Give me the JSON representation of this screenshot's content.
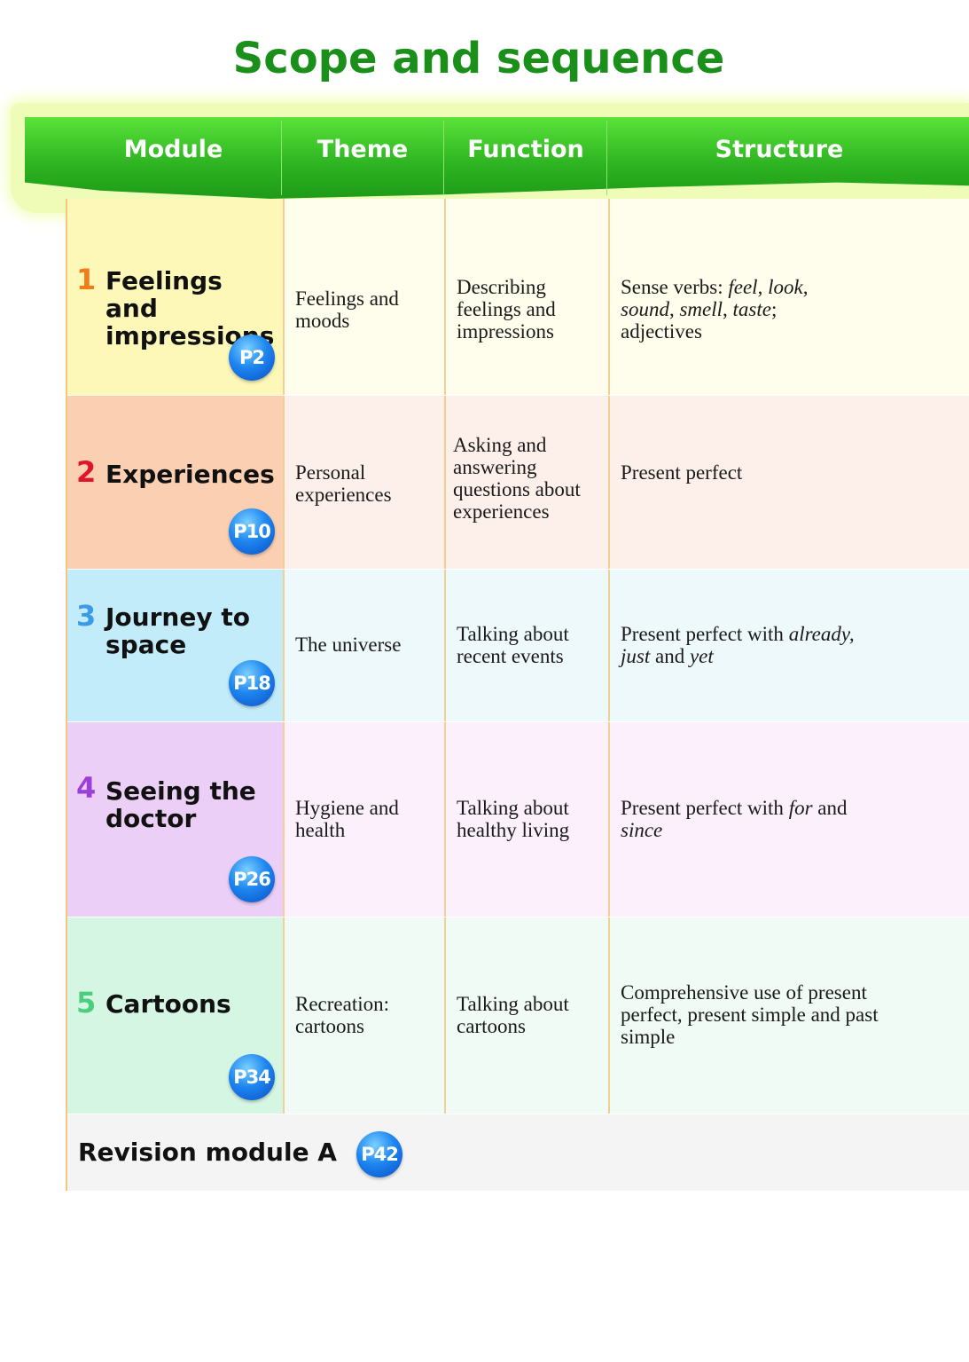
{
  "title": "Scope and sequence",
  "header": {
    "module": "Module",
    "theme": "Theme",
    "function": "Function",
    "structure": "Structure"
  },
  "modules": [
    {
      "number": "1",
      "title": "Feelings and impressions",
      "page": "P2",
      "theme": "Feelings and moods",
      "function": "Describing feelings and impressions",
      "structure": [
        {
          "t": "Sense verbs: ",
          "i": false
        },
        {
          "t": "feel",
          "i": true
        },
        {
          "t": ", ",
          "i": false
        },
        {
          "t": "look",
          "i": true
        },
        {
          "t": ", ",
          "i": false
        },
        {
          "t": "sound",
          "i": true
        },
        {
          "t": ", ",
          "i": false
        },
        {
          "t": "smell",
          "i": true
        },
        {
          "t": ", ",
          "i": false
        },
        {
          "t": "taste",
          "i": true
        },
        {
          "t": "; adjectives",
          "i": false
        }
      ],
      "number_color": "#f07d1a",
      "module_bg": "#fdf8b8",
      "row_bg": "#fffdec"
    },
    {
      "number": "2",
      "title": "Experiences",
      "page": "P10",
      "theme": "Personal experiences",
      "function": "Asking and answering questions about experiences",
      "structure": [
        {
          "t": "Present perfect",
          "i": false
        }
      ],
      "number_color": "#e0142a",
      "module_bg": "#fbcfb2",
      "row_bg": "#fdf0ea"
    },
    {
      "number": "3",
      "title": "Journey to space",
      "page": "P18",
      "theme": "The universe",
      "function": "Talking about recent events",
      "structure": [
        {
          "t": "Present perfect with ",
          "i": false
        },
        {
          "t": "already, just",
          "i": true
        },
        {
          "t": " and ",
          "i": false
        },
        {
          "t": "yet",
          "i": true
        }
      ],
      "number_color": "#3b9be8",
      "module_bg": "#c3ecfa",
      "row_bg": "#eef9fc"
    },
    {
      "number": "4",
      "title": "Seeing the doctor",
      "page": "P26",
      "theme": "Hygiene and health",
      "function": "Talking about healthy living",
      "structure": [
        {
          "t": "Present perfect with ",
          "i": false
        },
        {
          "t": "for",
          "i": true
        },
        {
          "t": " and ",
          "i": false
        },
        {
          "t": "since",
          "i": true
        }
      ],
      "number_color": "#9b3fd6",
      "module_bg": "#ebcff6",
      "row_bg": "#fbf0fc"
    },
    {
      "number": "5",
      "title": "Cartoons",
      "page": "P34",
      "theme": "Recreation: cartoons",
      "function": "Talking about cartoons",
      "structure": [
        {
          "t": "Comprehensive use of present perfect, present simple and past simple",
          "i": false
        }
      ],
      "number_color": "#4ccf7c",
      "module_bg": "#d4f6e2",
      "row_bg": "#effbf4"
    }
  ],
  "revision": {
    "title": "Revision module A",
    "page": "P42",
    "bg": "#f4f4f4"
  }
}
